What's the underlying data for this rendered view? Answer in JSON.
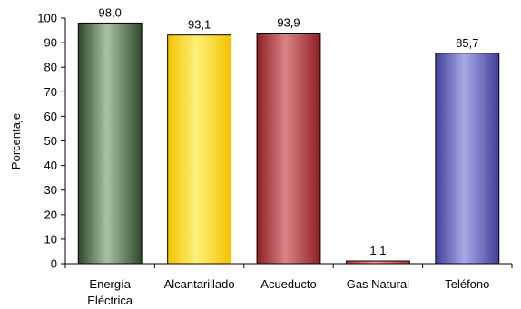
{
  "chart_data": {
    "type": "bar",
    "categories": [
      "Energía Eléctrica",
      "Alcantarillado",
      "Acueducto",
      "Gas Natural",
      "Teléfono"
    ],
    "category_lines": [
      [
        "Energía",
        "Eléctrica"
      ],
      [
        "Alcantarillado"
      ],
      [
        "Acueducto"
      ],
      [
        "Gas Natural"
      ],
      [
        "Teléfono"
      ]
    ],
    "values": [
      98.0,
      93.1,
      93.9,
      1.1,
      85.7
    ],
    "data_labels": [
      "98,0",
      "93,1",
      "93,9",
      "1,1",
      "85,7"
    ],
    "bar_colors": [
      "#2e4a2a",
      "#f2c400",
      "#8e1f22",
      "#d32b2b",
      "#3f3f9c"
    ],
    "bar_highlight_colors": [
      "#a9c2a4",
      "#fff07a",
      "#d98487",
      "#ff9a9a",
      "#a9a9e6"
    ],
    "yticks": [
      0,
      10,
      20,
      30,
      40,
      50,
      60,
      70,
      80,
      90,
      100
    ],
    "ylim": [
      0,
      100
    ],
    "title": "",
    "xlabel": "",
    "ylabel": "Porcentaje",
    "grid": false,
    "legend": false
  }
}
